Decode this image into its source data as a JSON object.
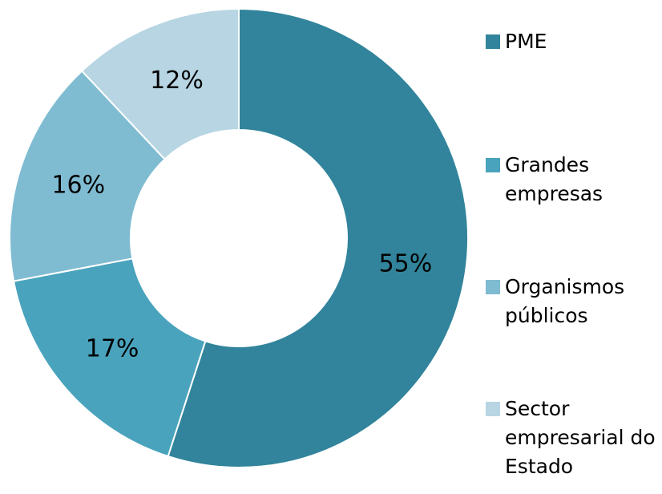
{
  "chart_data": {
    "type": "donut",
    "categories": [
      "PME",
      "Grandes empresas",
      "Organismos públicos",
      "Sector empresarial do Estado"
    ],
    "values": [
      55,
      17,
      16,
      12
    ],
    "value_labels": [
      "55%",
      "17%",
      "16%",
      "12%"
    ],
    "colors": [
      "#31849b",
      "#4aa3bd",
      "#7fbcd2",
      "#b7d5e2"
    ],
    "legend": "right"
  }
}
